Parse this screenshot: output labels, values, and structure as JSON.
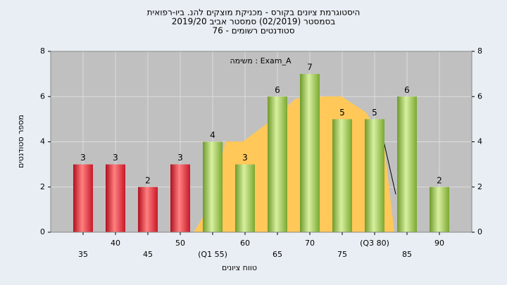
{
  "chart_data": {
    "type": "bar",
    "title": "היסטוגרמת ציונים בקורס - מכניקת מוצקים להנ. ביו-רפואית",
    "subtitle": [
      "בסמסטר  (02/2019)  סמסטר אביב 2019/20",
      "סטודנטים רשומים - 76"
    ],
    "annotation": "משימה : Exam_A",
    "x_label": "טווח ציונים",
    "y_label": "מספר סטודנטים",
    "categories": [
      "35",
      "40",
      "45",
      "50",
      "(Q1 55)",
      "60",
      "65",
      "70",
      "75",
      "(Q3 80)",
      "85",
      "90"
    ],
    "values": [
      3,
      3,
      2,
      3,
      4,
      3,
      6,
      7,
      5,
      5,
      6,
      2
    ],
    "colors": [
      "red",
      "red",
      "red",
      "red",
      "green",
      "green",
      "green",
      "green",
      "green",
      "green",
      "green",
      "green"
    ],
    "ylim": [
      0,
      8
    ],
    "yticks": [
      0,
      2,
      4,
      6,
      8
    ],
    "grid": true
  }
}
